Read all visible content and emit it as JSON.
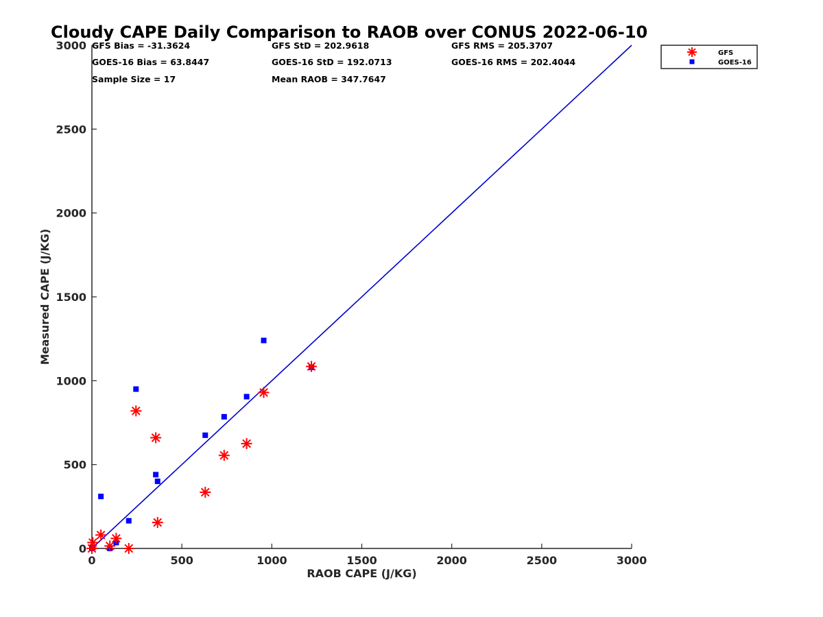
{
  "chart_data": {
    "type": "scatter",
    "title": "Cloudy CAPE Daily Comparison to RAOB over CONUS 2022-06-10",
    "xlabel": "RAOB CAPE (J/KG)",
    "ylabel": "Measured CAPE (J/KG)",
    "xlim": [
      0,
      3000
    ],
    "ylim": [
      0,
      3000
    ],
    "xticks": [
      0,
      500,
      1000,
      1500,
      2000,
      2500,
      3000
    ],
    "yticks": [
      0,
      500,
      1000,
      1500,
      2000,
      2500,
      3000
    ],
    "xtick_labels": [
      "0",
      "500",
      "1000",
      "1500",
      "2000",
      "2500",
      "3000"
    ],
    "ytick_labels": [
      "0",
      "500",
      "1000",
      "1500",
      "2000",
      "2500",
      "3000"
    ],
    "grid": false,
    "legend_position": "top-right",
    "reference_line": {
      "from": [
        0,
        0
      ],
      "to": [
        3000,
        3000
      ],
      "color": "#0000cc"
    },
    "stats": [
      [
        "GFS Bias = -31.3624",
        "GFS StD = 202.9618",
        "GFS RMS = 205.3707"
      ],
      [
        "GOES-16 Bias = 63.8447",
        "GOES-16 StD = 192.0713",
        "GOES-16 RMS = 202.4044"
      ],
      [
        "Sample Size = 17",
        "Mean RAOB = 347.7647",
        ""
      ]
    ],
    "series": [
      {
        "name": "GFS",
        "marker": "asterisk",
        "color": "#ff0000",
        "x": [
          0,
          5,
          50,
          100,
          135,
          205,
          245,
          355,
          365,
          630,
          735,
          860,
          955,
          1220
        ],
        "y": [
          0,
          35,
          80,
          15,
          60,
          0,
          820,
          660,
          155,
          335,
          555,
          625,
          930,
          1085
        ]
      },
      {
        "name": "GOES-16",
        "marker": "square",
        "color": "#0000ff",
        "x": [
          0,
          5,
          50,
          100,
          135,
          205,
          245,
          355,
          365,
          630,
          735,
          860,
          955,
          1220
        ],
        "y": [
          0,
          5,
          310,
          0,
          35,
          165,
          950,
          440,
          400,
          675,
          785,
          905,
          1240,
          1080
        ]
      }
    ]
  }
}
